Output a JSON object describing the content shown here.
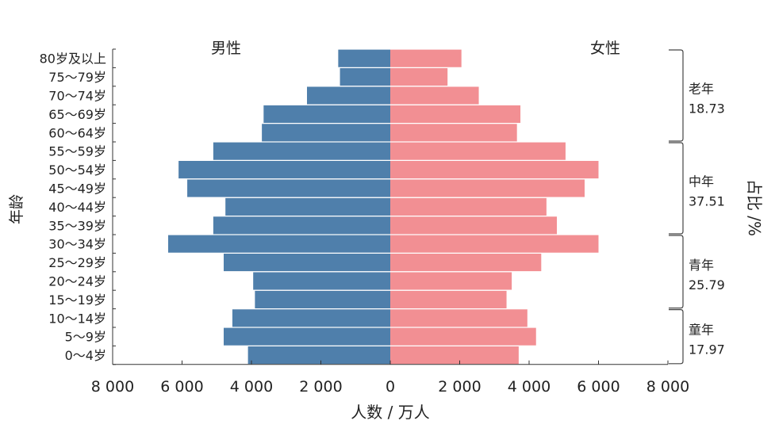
{
  "chart_data": {
    "type": "bar",
    "orientation": "horizontal-population-pyramid",
    "categories": [
      "0～4岁",
      "5～9岁",
      "10～14岁",
      "15～19岁",
      "20～24岁",
      "25～29岁",
      "30～34岁",
      "35～39岁",
      "40～44岁",
      "45～49岁",
      "50～54岁",
      "55～59岁",
      "60～64岁",
      "65～69岁",
      "70～74岁",
      "75～79岁",
      "80岁及以上"
    ],
    "series": [
      {
        "name": "男性",
        "color": "#4f7fab",
        "values": [
          4100,
          4800,
          4550,
          3900,
          3950,
          4800,
          6400,
          5100,
          4750,
          5850,
          6100,
          5100,
          3700,
          3650,
          2400,
          1450,
          1500
        ]
      },
      {
        "name": "女性",
        "color": "#f28f93",
        "values": [
          3700,
          4200,
          3950,
          3350,
          3500,
          4350,
          6000,
          4800,
          4500,
          5600,
          6000,
          5050,
          3650,
          3750,
          2550,
          1650,
          2050
        ]
      }
    ],
    "xlabel": "人数 / 万人",
    "ylabel": "年龄",
    "ylabel_right": "占比 /%",
    "xlim": [
      -8000,
      8000
    ],
    "xticks": [
      "8 000",
      "6 000",
      "4 000",
      "2 000",
      "0",
      "2 000",
      "4 000",
      "6 000",
      "8 000"
    ],
    "groups": [
      {
        "name": "童年",
        "value": "17.97",
        "from": "0～4岁",
        "to": "10～14岁"
      },
      {
        "name": "青年",
        "value": "25.79",
        "from": "15～19岁",
        "to": "30～34岁"
      },
      {
        "name": "中年",
        "value": "37.51",
        "from": "35～39岁",
        "to": "55～59岁"
      },
      {
        "name": "老年",
        "value": "18.73",
        "from": "60～64岁",
        "to": "80岁及以上"
      }
    ],
    "grid": false
  }
}
